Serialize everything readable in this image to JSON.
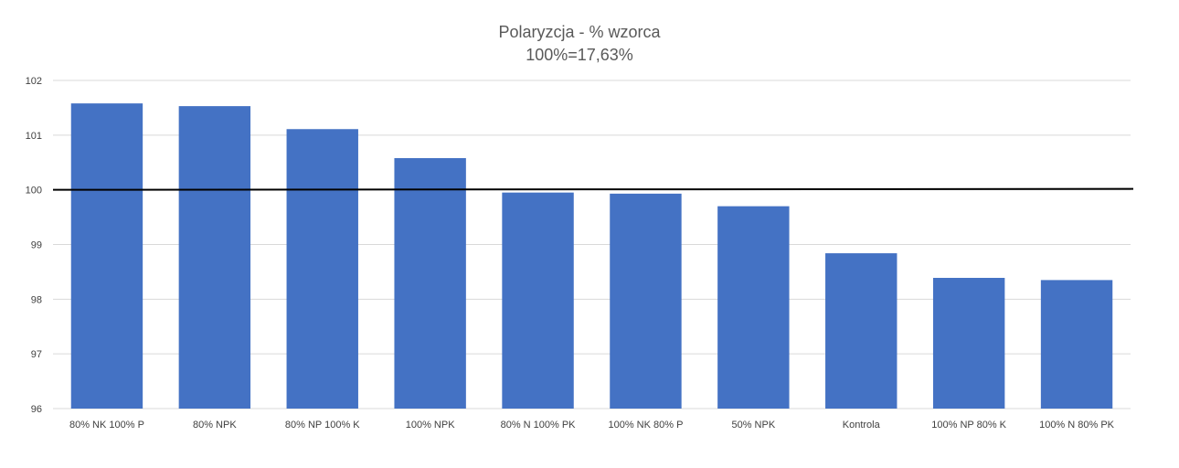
{
  "chart_data": {
    "type": "bar",
    "title": "Polaryzcja - % wzorca",
    "subtitle": "100%=17,63%",
    "categories": [
      "80% NK 100% P",
      "80% NPK",
      "80% NP 100% K",
      "100% NPK",
      "80% N 100% PK",
      "100% NK 80% P",
      "50% NPK",
      "Kontrola",
      "100% NP 80% K",
      "100% N 80% PK"
    ],
    "values": [
      101.58,
      101.53,
      101.11,
      100.58,
      99.95,
      99.93,
      99.7,
      98.84,
      98.39,
      98.35
    ],
    "ylim": [
      96,
      102
    ],
    "yticks": [
      "96",
      "97",
      "98",
      "99",
      "100",
      "101",
      "102"
    ],
    "reference_line": 100,
    "grid": true,
    "legend": "none",
    "bar_color": "#4472c4",
    "line_color": "#000000"
  }
}
